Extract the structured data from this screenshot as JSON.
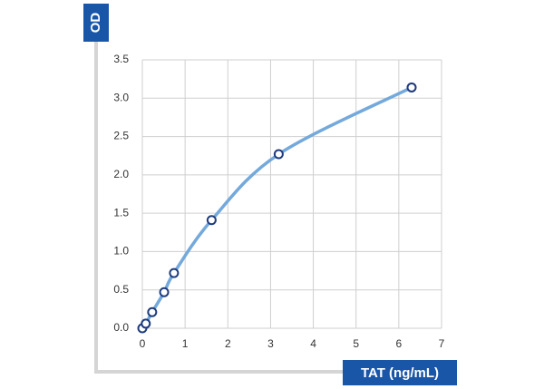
{
  "chart_data": {
    "type": "line",
    "x_label": "TAT (ng/mL)",
    "y_label": "OD",
    "series": [
      {
        "x": [
          0,
          0.08,
          0.23,
          0.51,
          0.74,
          1.62,
          3.19,
          6.3
        ],
        "values": [
          0,
          0.06,
          0.21,
          0.47,
          0.72,
          1.41,
          2.27,
          3.14
        ],
        "color": "#74a9dc",
        "marker_color": "#1d3b7c"
      }
    ],
    "xlim": [
      0,
      7
    ],
    "xticks": [
      0,
      1,
      2,
      3,
      4,
      5,
      6,
      7
    ],
    "ylim": [
      0,
      3.5
    ],
    "yticks": [
      {
        "value": 0,
        "label": "0.0"
      },
      0.5,
      {
        "value": 1,
        "label": "1.0"
      },
      1.5,
      {
        "value": 2,
        "label": "2.0"
      },
      2.5,
      {
        "value": 3,
        "label": "3.0"
      },
      3.5
    ],
    "grid": true,
    "label_color": "#1a56a8"
  }
}
